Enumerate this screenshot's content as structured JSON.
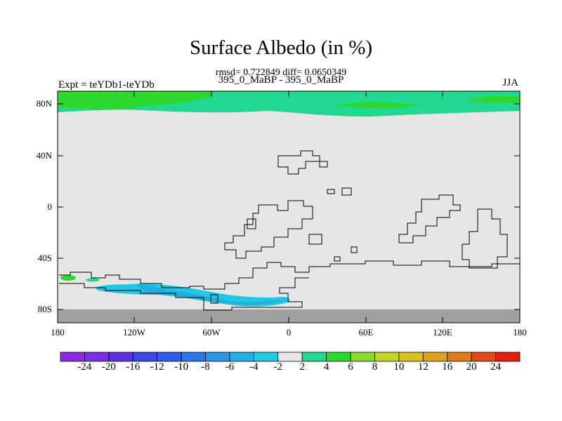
{
  "title": "Surface Albedo (in %)",
  "stats_line": "rmsd= 0.722849 diff= 0.0650349",
  "subtitle": "395_0_MaBP - 395_0_MaBP",
  "experiment_label": "Expt = teYDb1-teYDb",
  "season": "JJA",
  "map": {
    "lat_ticks": [
      "80N",
      "40N",
      "0",
      "40S",
      "80S"
    ],
    "lon_ticks": [
      "180",
      "120W",
      "60W",
      "0",
      "60E",
      "120E",
      "180"
    ],
    "background_color": "#e6e6e6",
    "polar_land_color": "#a0a0a0"
  },
  "colorbar": {
    "labels": [
      "-24",
      "-20",
      "-16",
      "-12",
      "-10",
      "-8",
      "-6",
      "-4",
      "-2",
      "2",
      "4",
      "6",
      "8",
      "10",
      "12",
      "16",
      "20",
      "24"
    ],
    "colors": [
      "#8a2be2",
      "#7a2ee6",
      "#5a32e0",
      "#3c46e0",
      "#2e5ee6",
      "#2a78e8",
      "#2a96e6",
      "#22aee0",
      "#22c8e0",
      "#e6e6e6",
      "#22d890",
      "#2ed82e",
      "#8cd82e",
      "#c0d42a",
      "#d8c020",
      "#e0a020",
      "#e07a1a",
      "#e04a1a",
      "#e02010"
    ]
  }
}
